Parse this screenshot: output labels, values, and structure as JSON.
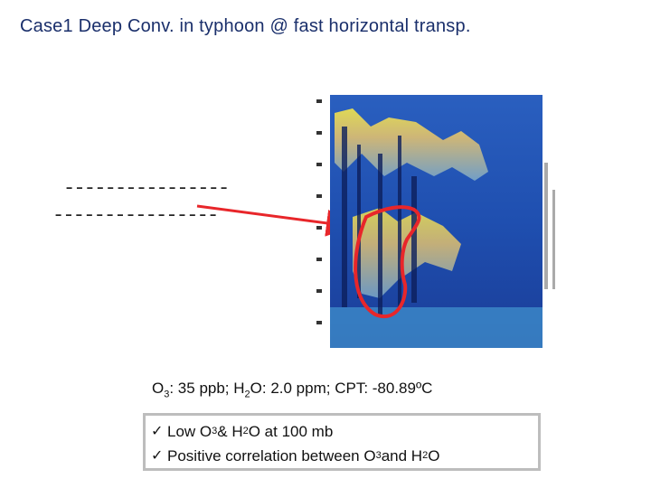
{
  "title": "Case1 Deep Conv. in typhoon @ fast horizontal transp.",
  "dashes": [
    "----------------",
    "----------------"
  ],
  "caption": {
    "o3_label": "O",
    "o3_sub": "3",
    "o3_text": ":   35 ppb; H",
    "h2o_sub": "2",
    "h2o_text": "O: 2.0 ppm; CPT: -80.89ºC"
  },
  "bullets": [
    {
      "icon": "check-icon",
      "text_a": "Low O",
      "sub_a": "3",
      "text_b": " & H",
      "sub_b": "2",
      "text_c": "O at 100 mb"
    },
    {
      "icon": "check-icon",
      "text_a": "Positive correlation between O",
      "sub_a": "3",
      "text_b": " and H",
      "sub_b": "2",
      "text_c": "O"
    }
  ],
  "colors": {
    "title": "#1a2f6b",
    "arrow": "#e8262a",
    "outline": "#e8262a",
    "box_border": "#bdbdbd"
  }
}
